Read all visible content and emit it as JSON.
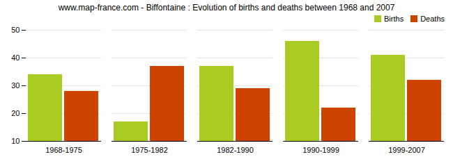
{
  "chart_data": {
    "type": "bar",
    "title": "www.map-france.com - Biffontaine : Evolution of births and deaths between 1968 and 2007",
    "categories": [
      "1968-1975",
      "1975-1982",
      "1982-1990",
      "1990-1999",
      "1999-2007"
    ],
    "series": [
      {
        "name": "Births",
        "color": "#aacc22",
        "values": [
          34,
          17,
          37,
          46,
          41
        ]
      },
      {
        "name": "Deaths",
        "color": "#cc4400",
        "values": [
          28,
          37,
          29,
          22,
          32
        ]
      }
    ],
    "ylim": [
      10,
      50
    ],
    "yticks": [
      10,
      20,
      30,
      40,
      50
    ],
    "grid": true,
    "legend": "upper right"
  }
}
